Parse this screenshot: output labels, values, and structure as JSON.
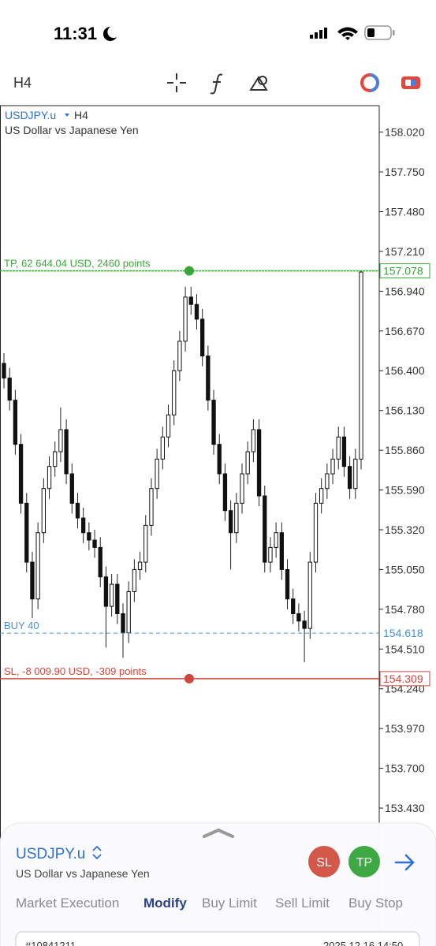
{
  "status_bar": {
    "time": "11:31"
  },
  "toolbar": {
    "timeframe": "H4"
  },
  "chart_data": {
    "type": "candlestick",
    "symbol": "USDJPY.u",
    "timeframe": "H4",
    "description": "US Dollar vs Japanese Yen",
    "open": [
      156.45,
      156.35,
      156.2,
      155.9,
      155.5,
      155.1,
      154.85,
      155.3,
      155.6,
      155.75,
      155.85,
      156.0,
      155.7,
      155.5,
      155.4,
      155.3,
      155.25,
      155.2,
      155.0,
      154.8,
      154.95,
      154.75,
      154.62,
      154.9,
      155.05,
      155.1,
      155.35,
      155.6,
      155.8,
      155.95,
      156.1,
      156.4,
      156.6,
      156.9,
      156.85,
      156.75,
      156.5,
      156.2,
      155.9,
      155.7,
      155.45,
      155.3,
      155.5,
      155.7,
      155.85,
      156.0,
      155.55,
      155.1,
      155.2,
      155.3,
      155.05,
      154.85,
      154.75,
      154.7,
      154.65,
      155.1,
      155.5,
      155.6,
      155.7,
      155.8,
      155.95,
      155.75,
      155.6,
      155.8
    ],
    "high": [
      156.52,
      156.42,
      156.27,
      155.97,
      155.57,
      155.17,
      155.37,
      155.67,
      155.82,
      155.92,
      156.15,
      156.07,
      155.77,
      155.57,
      155.47,
      155.37,
      155.32,
      155.27,
      155.07,
      155.02,
      155.02,
      154.82,
      154.97,
      155.12,
      155.17,
      155.42,
      155.67,
      155.87,
      156.02,
      156.17,
      156.47,
      156.67,
      156.97,
      156.97,
      156.92,
      156.82,
      156.57,
      156.27,
      155.97,
      155.77,
      155.52,
      155.57,
      155.77,
      155.92,
      156.07,
      156.07,
      155.62,
      155.27,
      155.37,
      155.37,
      155.12,
      154.92,
      154.82,
      154.77,
      155.17,
      155.57,
      155.67,
      155.77,
      155.87,
      156.02,
      156.02,
      155.82,
      155.87,
      157.08
    ],
    "low": [
      156.28,
      156.13,
      155.83,
      155.43,
      155.03,
      154.72,
      154.78,
      155.23,
      155.53,
      155.68,
      155.78,
      155.63,
      155.43,
      155.33,
      155.23,
      155.18,
      155.13,
      154.93,
      154.52,
      154.73,
      154.68,
      154.45,
      154.55,
      154.83,
      154.98,
      155.03,
      155.28,
      155.53,
      155.73,
      155.88,
      156.03,
      156.33,
      156.53,
      156.78,
      156.68,
      156.43,
      156.13,
      155.83,
      155.63,
      155.38,
      155.05,
      155.23,
      155.43,
      155.63,
      155.78,
      155.48,
      155.03,
      155.03,
      155.13,
      154.98,
      154.78,
      154.68,
      154.63,
      154.42,
      154.58,
      155.03,
      155.43,
      155.53,
      155.63,
      155.73,
      155.68,
      155.53,
      155.53,
      155.73
    ],
    "close": [
      156.35,
      156.2,
      155.9,
      155.5,
      155.1,
      154.85,
      155.3,
      155.6,
      155.75,
      155.85,
      156.0,
      155.7,
      155.5,
      155.4,
      155.3,
      155.25,
      155.2,
      155.0,
      154.8,
      154.95,
      154.75,
      154.62,
      154.9,
      155.05,
      155.1,
      155.35,
      155.6,
      155.8,
      155.95,
      156.1,
      156.4,
      156.6,
      156.9,
      156.85,
      156.75,
      156.5,
      156.2,
      155.9,
      155.7,
      155.45,
      155.3,
      155.5,
      155.7,
      155.85,
      156.0,
      155.55,
      155.1,
      155.2,
      155.3,
      155.05,
      154.85,
      154.75,
      154.7,
      154.65,
      155.1,
      155.5,
      155.6,
      155.7,
      155.8,
      155.95,
      155.75,
      155.6,
      155.8,
      157.07
    ],
    "ylim": [
      153.35,
      158.2
    ],
    "yticks": [
      {
        "value": 158.02,
        "label": "158.020"
      },
      {
        "value": 157.75,
        "label": "157.750"
      },
      {
        "value": 157.48,
        "label": "157.480"
      },
      {
        "value": 157.21,
        "label": "157.210"
      },
      {
        "value": 156.94,
        "label": "156.940"
      },
      {
        "value": 156.67,
        "label": "156.670"
      },
      {
        "value": 156.4,
        "label": "156.400"
      },
      {
        "value": 156.13,
        "label": "156.130"
      },
      {
        "value": 155.86,
        "label": "155.860"
      },
      {
        "value": 155.59,
        "label": "155.590"
      },
      {
        "value": 155.32,
        "label": "155.320"
      },
      {
        "value": 155.05,
        "label": "155.050"
      },
      {
        "value": 154.78,
        "label": "154.780"
      },
      {
        "value": 154.51,
        "label": "154.510"
      },
      {
        "value": 154.24,
        "label": "154.240"
      },
      {
        "value": 153.97,
        "label": "153.970"
      },
      {
        "value": 153.7,
        "label": "153.700"
      },
      {
        "value": 153.43,
        "label": "153.430"
      }
    ],
    "levels": [
      {
        "label": "TP, 62 644.04 USD, 2460 points",
        "value": 157.078,
        "color": "#3aa53a",
        "draggable": true
      },
      {
        "label": "BUY 40",
        "value": 154.618,
        "color": "#4a90d9",
        "draggable": false
      },
      {
        "label": "SL, -8 009.90 USD, -309 points",
        "value": 154.309,
        "color": "#d0463b",
        "draggable": true
      }
    ]
  },
  "order_panel": {
    "symbol": "USDJPY.u",
    "description": "US Dollar vs Japanese Yen",
    "sl_button": "SL",
    "tp_button": "TP",
    "tabs": [
      "Market Execution",
      "Modify",
      "Buy Limit",
      "Sell Limit",
      "Buy Stop"
    ],
    "order_id": "#10841211",
    "order_time": "2025.12.16 14:50"
  }
}
